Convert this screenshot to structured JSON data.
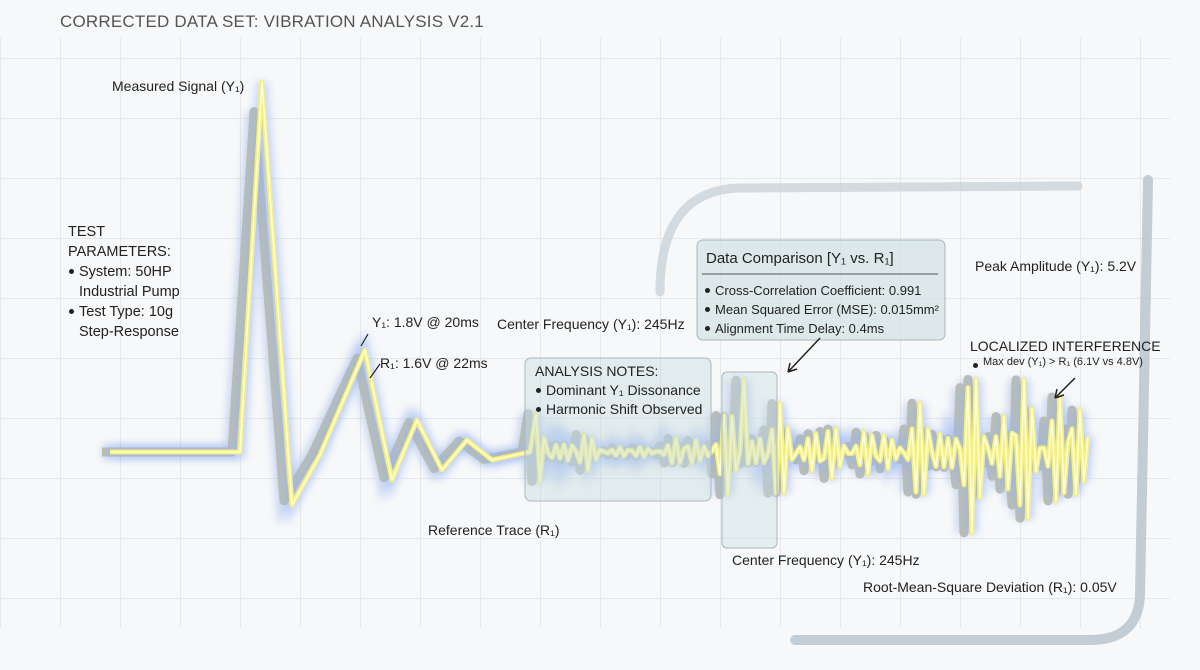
{
  "title": "CORRECTED DATA SET: VIBRATION ANALYSIS V2.1",
  "labels": {
    "measured_signal": "Measured Signal (Y₁)",
    "y1_point": "Y₁: 1.8V @ 20ms",
    "r1_point": "R₁: 1.6V @ 22ms",
    "center_frequency_top": "Center Frequency (Y₁): 245Hz",
    "reference_trace": "Reference Trace (R₁)",
    "center_frequency_bottom": "Center Frequency (Y₁): 245Hz",
    "peak_amplitude": "Peak Amplitude (Y₁): 5.2V",
    "rms_deviation": "Root-Mean-Square Deviation (R₁): 0.05V"
  },
  "test_parameters": {
    "heading": "TEST PARAMETERS:",
    "items": [
      "System: 50HP Industrial Pump",
      "Test Type: 10g Step-Response"
    ]
  },
  "analysis_notes": {
    "heading": "ANALYSIS NOTES:",
    "items": [
      "Dominant Y₁ Dissonance",
      "Harmonic Shift Observed"
    ]
  },
  "data_comparison": {
    "heading": "Data Comparison [Y₁ vs. R₁]",
    "items": [
      "Cross-Correlation Coefficient: 0.991",
      "Mean Squared Error (MSE): 0.015mm²",
      "Alignment Time Delay: 0.4ms"
    ]
  },
  "interference": {
    "heading": "LOCALIZED INTERFERENCE",
    "note": "Max dev (Y₁) > R₁ (6.1V vs 4.8V)"
  }
}
